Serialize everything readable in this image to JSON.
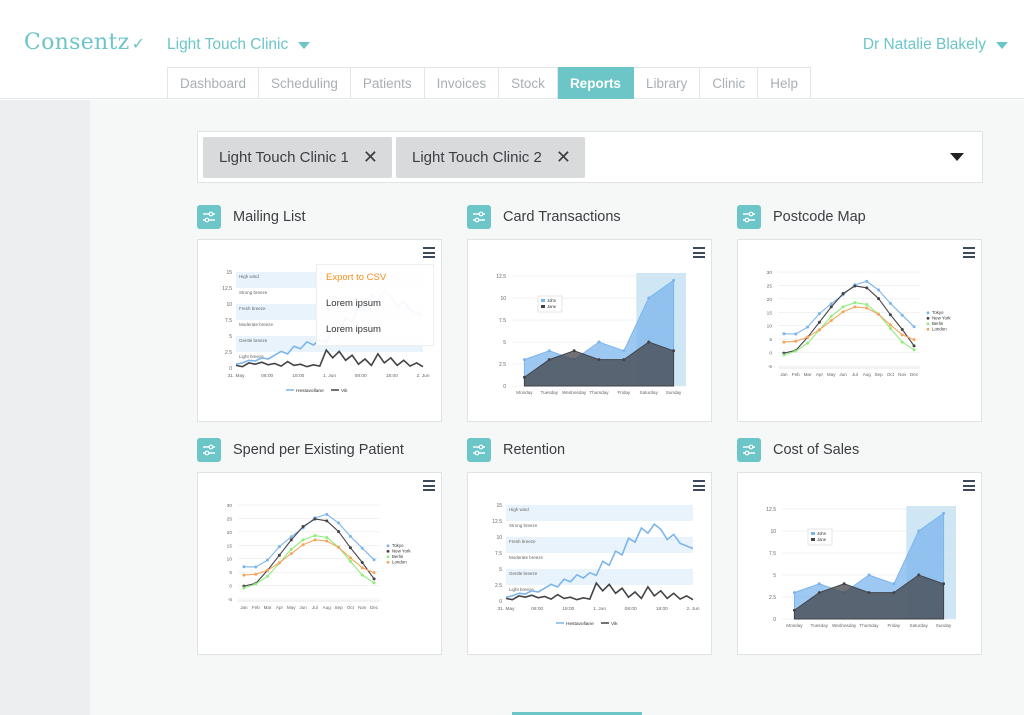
{
  "header": {
    "logo": "Consentz",
    "clinic": "Light Touch Clinic",
    "user": "Dr Natalie Blakely"
  },
  "tabs": [
    "Dashboard",
    "Scheduling",
    "Patients",
    "Invoices",
    "Stock",
    "Reports",
    "Library",
    "Clinic",
    "Help"
  ],
  "active_tab": "Reports",
  "filter": {
    "chips": [
      "Light Touch Clinic 1",
      "Light Touch Clinic 2"
    ]
  },
  "widgets": [
    {
      "title": "Mailing List",
      "menu": [
        "Export to CSV",
        "Lorem ipsum",
        "Lorem ipsum"
      ]
    },
    {
      "title": "Card Transactions"
    },
    {
      "title": "Postcode Map"
    },
    {
      "title": "Spend per Existing Patient"
    },
    {
      "title": "Retention"
    },
    {
      "title": "Cost of Sales"
    }
  ],
  "colors": {
    "accent": "#6cc5c7",
    "series_blue": "#7cb5ec",
    "series_dark": "#434348",
    "series_green": "#90ed7d",
    "series_orange": "#f7a35c"
  },
  "charts": {
    "wind": {
      "bands": [
        "High wind",
        "Strong breeze",
        "Fresh breeze",
        "Moderate breeze",
        "Gentle breeze",
        "Light breeze"
      ],
      "yticks": [
        "15",
        "12.5",
        "10",
        "7.5",
        "5",
        "2.5",
        "0"
      ],
      "xticks": [
        "31. May",
        "08:00",
        "18:00",
        "1. Jun",
        "08:00",
        "18:00",
        "2. Jun"
      ],
      "legend": [
        "Hestavollane",
        "Vik"
      ],
      "hest": [
        0.6,
        0.8,
        1.2,
        1.1,
        1.6,
        1.4,
        2.0,
        2.6,
        2.2,
        3.4,
        3.0,
        4.1,
        3.6,
        4.4,
        4.0,
        6.2,
        5.6,
        7.8,
        7.2,
        9.8,
        9.2,
        11.4,
        10.6,
        12.0,
        11.2,
        9.6,
        10.4,
        9.0,
        8.6,
        8.2
      ],
      "vik": [
        0.4,
        0.2,
        0.8,
        0.6,
        0.9,
        0.5,
        0.7,
        0.3,
        1.0,
        0.4,
        0.6,
        0.2,
        0.5,
        0.3,
        2.8,
        1.6,
        2.6,
        1.2,
        2.0,
        0.6,
        1.4,
        0.4,
        2.2,
        0.8,
        1.6,
        0.4,
        1.2,
        0.3,
        0.8,
        0.2
      ]
    },
    "area": {
      "categories": [
        "Monday",
        "Tuesday",
        "Wednesday",
        "Thursday",
        "Friday",
        "Saturday",
        "Sunday"
      ],
      "yticks": [
        "12.5",
        "10",
        "7.5",
        "5",
        "2.5",
        "0"
      ],
      "legend": [
        "John",
        "Jane"
      ],
      "john": [
        3,
        4,
        3,
        5,
        4,
        10,
        12
      ],
      "jane": [
        1,
        3,
        4,
        3,
        3,
        5,
        4
      ]
    },
    "temp": {
      "categories": [
        "Jan",
        "Feb",
        "Mar",
        "Apr",
        "May",
        "Jun",
        "Jul",
        "Aug",
        "Sep",
        "Oct",
        "Nov",
        "Dec"
      ],
      "yticks": [
        "30",
        "25",
        "20",
        "15",
        "10",
        "5",
        "0",
        "-5"
      ],
      "legend": [
        "Tokyo",
        "New York",
        "Berlin",
        "London"
      ],
      "series": {
        "tokyo": [
          7,
          6.9,
          9.5,
          14.5,
          18.2,
          21.5,
          25.2,
          26.5,
          23.3,
          18.3,
          13.9,
          9.6
        ],
        "newyork": [
          -0.2,
          0.8,
          5.7,
          11.3,
          17,
          22,
          24.8,
          24.1,
          20.1,
          14.1,
          8.6,
          2.5
        ],
        "berlin": [
          -0.9,
          0.6,
          3.5,
          8.4,
          13.5,
          17,
          18.6,
          17.9,
          14.3,
          9,
          3.9,
          1
        ],
        "london": [
          3.9,
          4.2,
          5.7,
          8.5,
          11.9,
          15.2,
          17,
          16.6,
          14.2,
          10.3,
          6.6,
          4.8
        ]
      }
    }
  }
}
